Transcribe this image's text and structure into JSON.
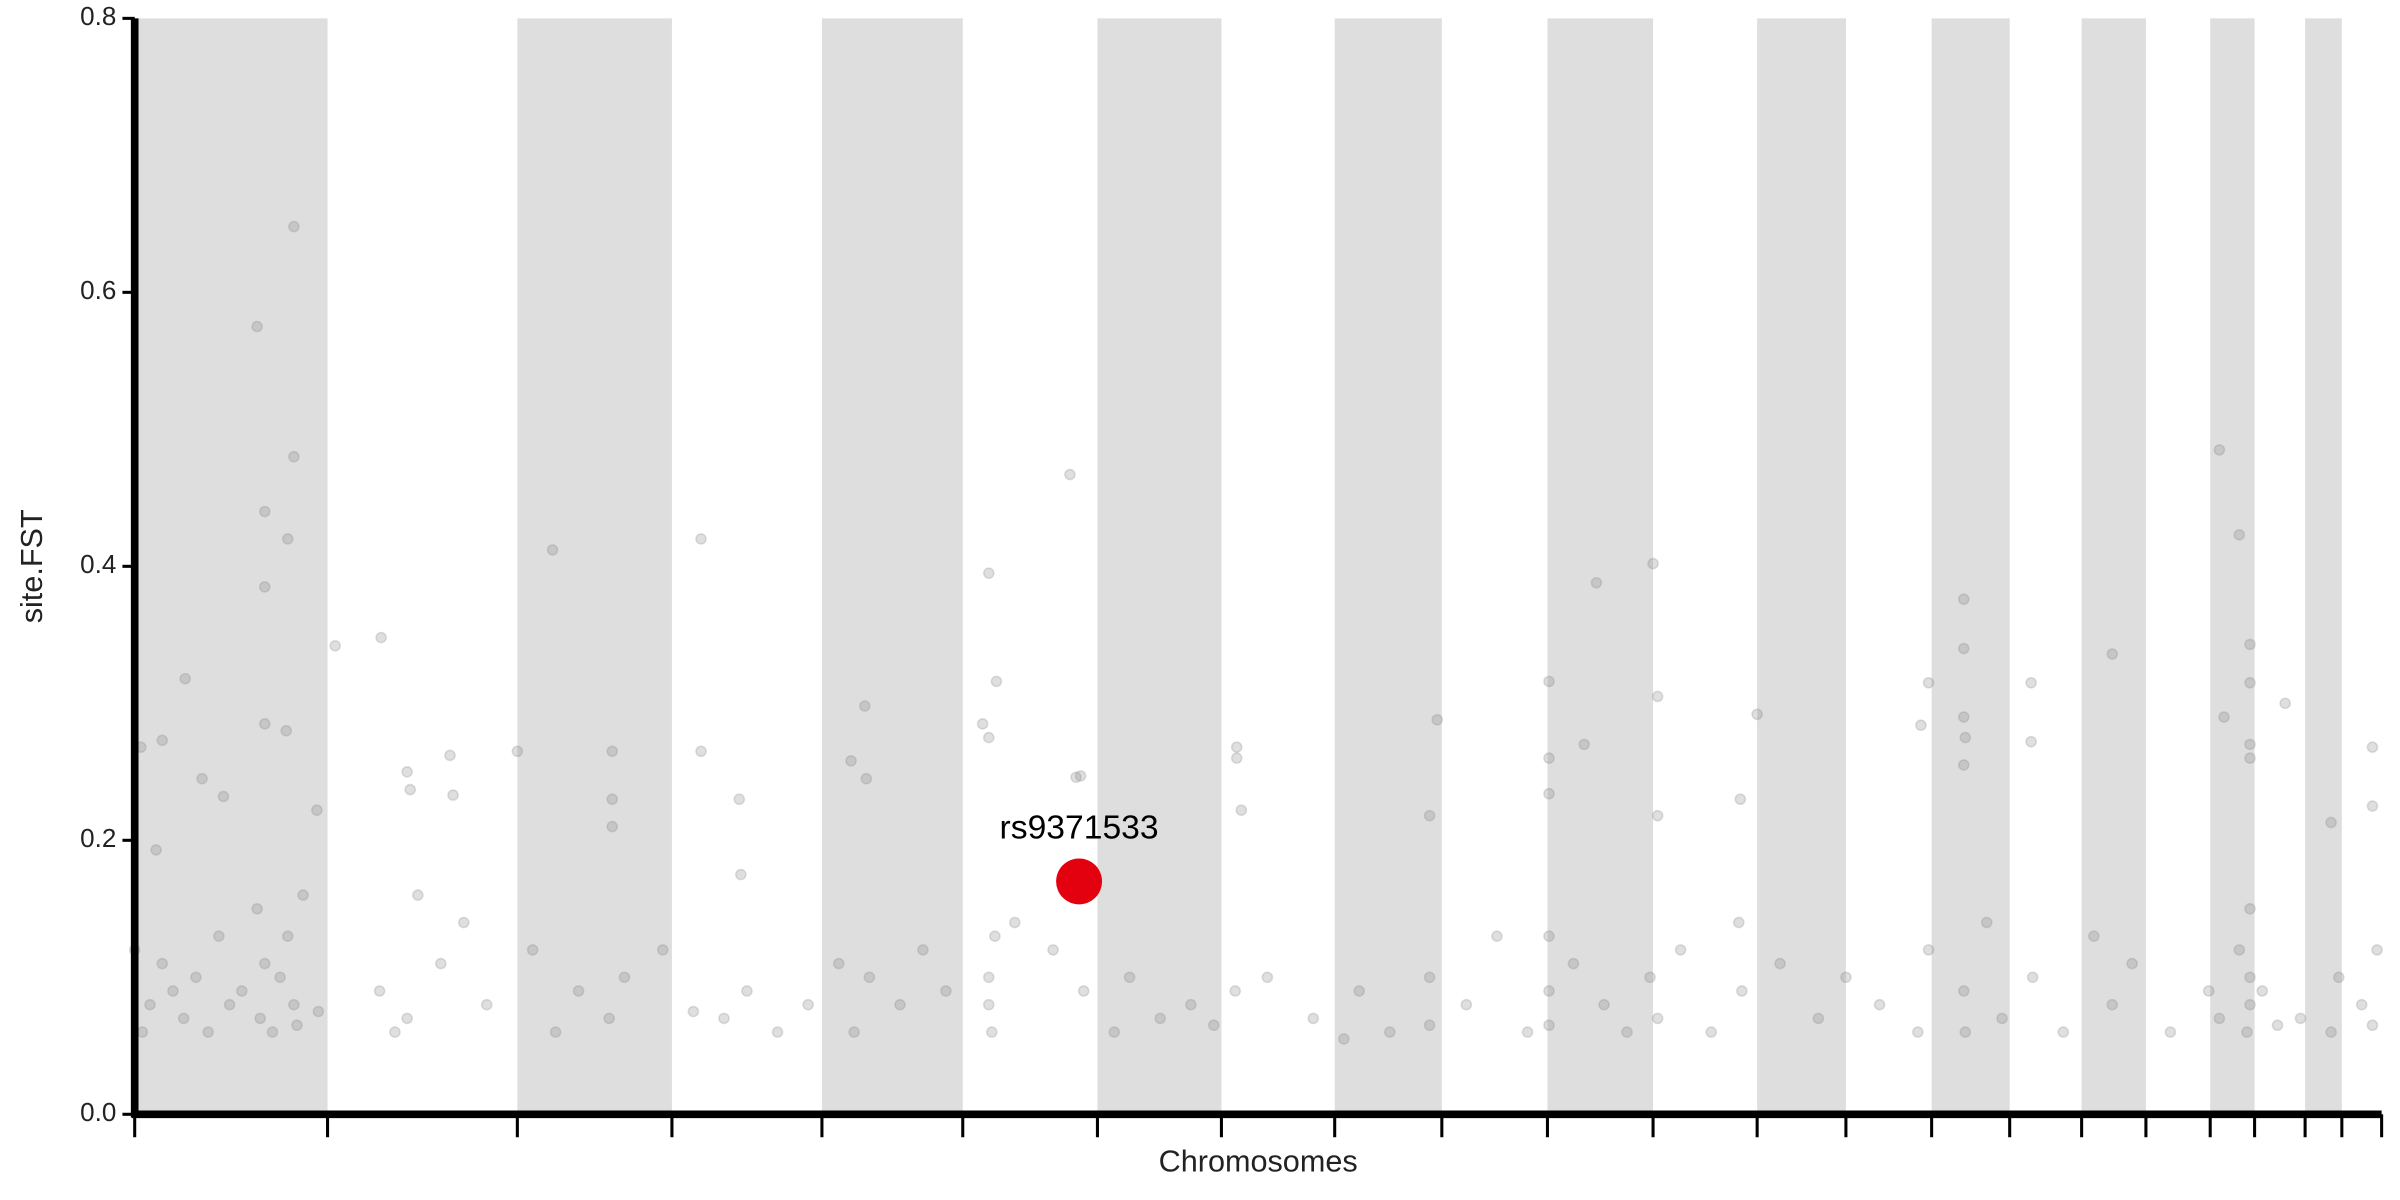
{
  "chart_data": {
    "type": "scatter",
    "y_label": "site.FST",
    "x_label": "Chromosomes",
    "xlim": [
      0,
      1468
    ],
    "ylim": [
      0,
      0.8
    ],
    "yticks": [
      {
        "value": 0,
        "label": "0.0"
      },
      0.2,
      0.4,
      0.6,
      0.8
    ],
    "xticks": [
      0,
      126,
      250,
      351,
      449,
      541,
      629,
      710,
      784,
      854,
      923,
      992,
      1060,
      1118,
      1174,
      1225,
      1272,
      1314,
      1356,
      1385,
      1418,
      1442,
      1468
    ],
    "alternate_bands": true,
    "band_color": "#dedede",
    "color": "#808080",
    "opacity": 0.25,
    "x": [
      80,
      104,
      104,
      85,
      100,
      85,
      85,
      99,
      33,
      18,
      4,
      14,
      44,
      58,
      119,
      131,
      161,
      178,
      180,
      206,
      208,
      250,
      273,
      312,
      312,
      312,
      370,
      370,
      395,
      396,
      477,
      468,
      478,
      558,
      563,
      554,
      558,
      611,
      615,
      618,
      720,
      720,
      723,
      851,
      846,
      924,
      924,
      924,
      947,
      955,
      992,
      995,
      995,
      1049,
      1060,
      1167,
      1172,
      1195,
      1195,
      1195,
      1196,
      1195,
      1239,
      1239,
      1292,
      1362,
      1375,
      1382,
      1382,
      1382,
      1382,
      1365,
      1405,
      1435,
      1462,
      1462,
      0,
      5,
      10,
      18,
      25,
      32,
      40,
      48,
      55,
      62,
      70,
      80,
      82,
      85,
      90,
      95,
      100,
      104,
      106,
      110,
      120,
      160,
      170,
      178,
      185,
      200,
      215,
      230,
      260,
      275,
      290,
      310,
      320,
      345,
      365,
      385,
      400,
      420,
      440,
      460,
      470,
      480,
      500,
      515,
      530,
      558,
      560,
      562,
      558,
      575,
      600,
      620,
      640,
      650,
      670,
      690,
      705,
      719,
      740,
      770,
      790,
      800,
      820,
      846,
      846,
      870,
      890,
      910,
      924,
      924,
      924,
      940,
      960,
      975,
      990,
      995,
      1010,
      1030,
      1048,
      1050,
      1075,
      1100,
      1118,
      1140,
      1165,
      1172,
      1195,
      1196,
      1210,
      1220,
      1240,
      1260,
      1280,
      1292,
      1305,
      1330,
      1355,
      1362,
      1375,
      1380,
      1382,
      1382,
      1382,
      1390,
      1400,
      1415,
      1435,
      1440,
      1455,
      1462,
      1465
    ],
    "values": [
      0.575,
      0.648,
      0.48,
      0.44,
      0.42,
      0.385,
      0.285,
      0.28,
      0.318,
      0.273,
      0.268,
      0.193,
      0.245,
      0.232,
      0.222,
      0.342,
      0.348,
      0.25,
      0.237,
      0.262,
      0.233,
      0.265,
      0.412,
      0.265,
      0.23,
      0.21,
      0.42,
      0.265,
      0.23,
      0.175,
      0.298,
      0.258,
      0.245,
      0.395,
      0.316,
      0.285,
      0.275,
      0.467,
      0.246,
      0.247,
      0.268,
      0.26,
      0.222,
      0.288,
      0.218,
      0.316,
      0.26,
      0.234,
      0.27,
      0.388,
      0.402,
      0.305,
      0.218,
      0.23,
      0.292,
      0.284,
      0.315,
      0.376,
      0.34,
      0.29,
      0.275,
      0.255,
      0.315,
      0.272,
      0.336,
      0.485,
      0.423,
      0.343,
      0.315,
      0.27,
      0.26,
      0.29,
      0.3,
      0.213,
      0.268,
      0.225,
      0.12,
      0.06,
      0.08,
      0.11,
      0.09,
      0.07,
      0.1,
      0.06,
      0.13,
      0.08,
      0.09,
      0.15,
      0.07,
      0.11,
      0.06,
      0.1,
      0.13,
      0.08,
      0.065,
      0.16,
      0.075,
      0.09,
      0.06,
      0.07,
      0.16,
      0.11,
      0.14,
      0.08,
      0.12,
      0.06,
      0.09,
      0.07,
      0.1,
      0.12,
      0.075,
      0.07,
      0.09,
      0.06,
      0.08,
      0.11,
      0.06,
      0.1,
      0.08,
      0.12,
      0.09,
      0.1,
      0.06,
      0.13,
      0.08,
      0.14,
      0.12,
      0.09,
      0.06,
      0.1,
      0.07,
      0.08,
      0.065,
      0.09,
      0.1,
      0.07,
      0.055,
      0.09,
      0.06,
      0.1,
      0.065,
      0.08,
      0.13,
      0.06,
      0.09,
      0.065,
      0.13,
      0.11,
      0.08,
      0.06,
      0.1,
      0.07,
      0.12,
      0.06,
      0.14,
      0.09,
      0.11,
      0.07,
      0.1,
      0.08,
      0.06,
      0.12,
      0.09,
      0.06,
      0.14,
      0.07,
      0.1,
      0.06,
      0.13,
      0.08,
      0.11,
      0.06,
      0.09,
      0.07,
      0.12,
      0.06,
      0.1,
      0.15,
      0.08,
      0.09,
      0.065,
      0.07,
      0.06,
      0.1,
      0.08,
      0.065,
      0.12
    ],
    "highlight": {
      "x": 617,
      "value": 0.17,
      "label": "rs9371533",
      "color": "#e3000f"
    }
  }
}
